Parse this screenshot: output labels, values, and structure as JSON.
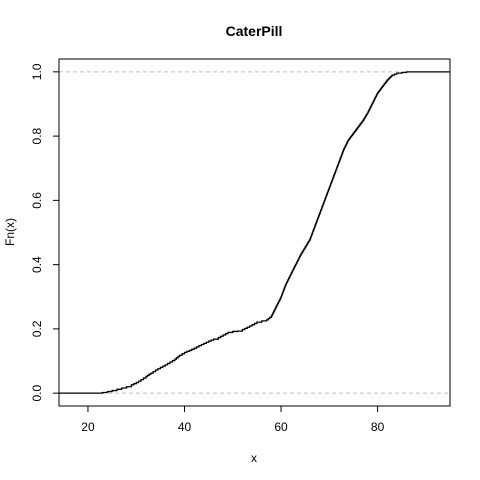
{
  "chart_data": {
    "type": "line",
    "subtype": "empirical-cdf-step",
    "title": "CaterPill",
    "xlabel": "x",
    "ylabel": "Fn(x)",
    "xlim": [
      14,
      95
    ],
    "ylim": [
      -0.04,
      1.04
    ],
    "x_ticks": [
      20,
      40,
      60,
      80
    ],
    "x_tick_labels": [
      "20",
      "40",
      "60",
      "80"
    ],
    "y_ticks": [
      0.0,
      0.2,
      0.4,
      0.6,
      0.8,
      1.0
    ],
    "y_tick_labels": [
      "0.0",
      "0.2",
      "0.4",
      "0.6",
      "0.8",
      "1.0"
    ],
    "reference_lines": [
      0,
      1
    ],
    "grid": false,
    "legend": "none",
    "colors": {
      "line": "#000000",
      "reference": "#bebebe",
      "frame": "#000000"
    },
    "series": [
      {
        "x": [
          14,
          22,
          23,
          24,
          25,
          26,
          27,
          28,
          29,
          30,
          31,
          32,
          33,
          34,
          35,
          36,
          37,
          38,
          39,
          40,
          41,
          42,
          43,
          44,
          45,
          46,
          47,
          48,
          49,
          50,
          51,
          52,
          53,
          54,
          55,
          56,
          57,
          58,
          59,
          60,
          61,
          62,
          63,
          64,
          65,
          66,
          67,
          68,
          69,
          70,
          71,
          72,
          73,
          74,
          75,
          76,
          77,
          78,
          79,
          80,
          81,
          82,
          83,
          84,
          85,
          86,
          87,
          95
        ],
        "y": [
          0,
          0,
          0.002,
          0.005,
          0.008,
          0.012,
          0.016,
          0.02,
          0.026,
          0.033,
          0.042,
          0.052,
          0.062,
          0.072,
          0.08,
          0.088,
          0.097,
          0.106,
          0.118,
          0.127,
          0.133,
          0.14,
          0.148,
          0.155,
          0.162,
          0.168,
          0.173,
          0.181,
          0.189,
          0.192,
          0.193,
          0.198,
          0.205,
          0.213,
          0.221,
          0.225,
          0.228,
          0.24,
          0.27,
          0.3,
          0.34,
          0.37,
          0.4,
          0.43,
          0.455,
          0.48,
          0.52,
          0.56,
          0.6,
          0.64,
          0.68,
          0.72,
          0.76,
          0.79,
          0.81,
          0.83,
          0.85,
          0.875,
          0.905,
          0.935,
          0.955,
          0.975,
          0.99,
          0.996,
          0.998,
          1,
          1,
          1
        ]
      }
    ]
  }
}
